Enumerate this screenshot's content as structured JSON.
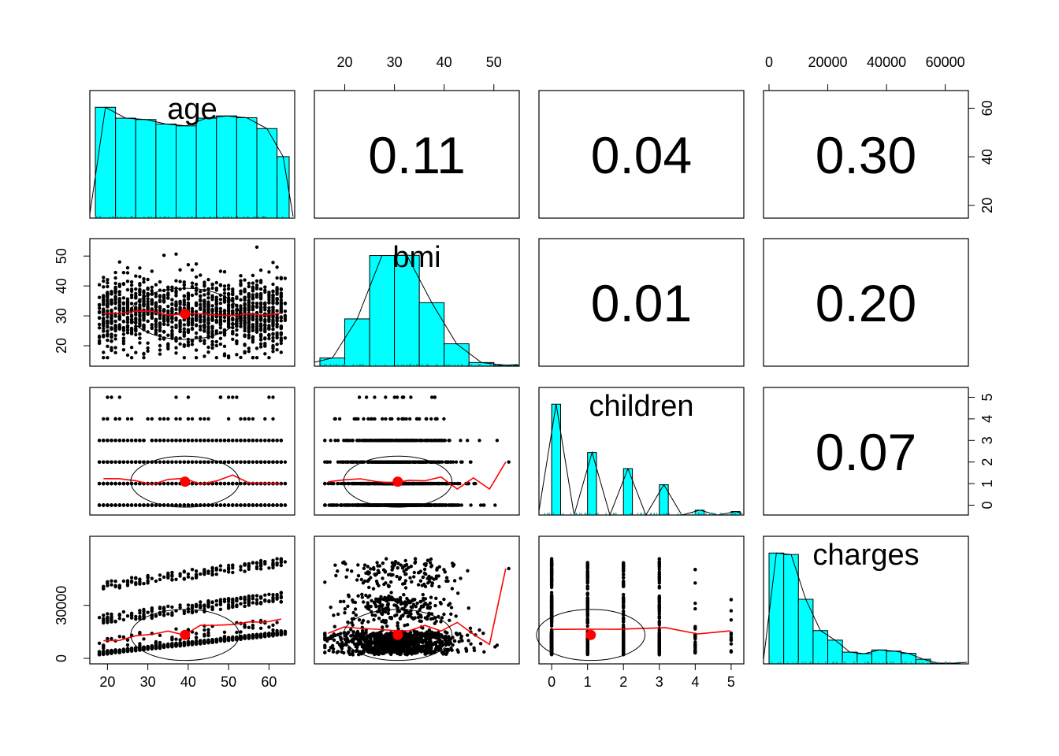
{
  "chart_data": {
    "type": "scatter",
    "variables": [
      "age",
      "bmi",
      "children",
      "charges"
    ],
    "correlations": [
      {
        "row": 0,
        "col": 1,
        "text": "0.11",
        "value": 0.11
      },
      {
        "row": 0,
        "col": 2,
        "text": "0.04",
        "value": 0.04
      },
      {
        "row": 0,
        "col": 3,
        "text": "0.30",
        "value": 0.3
      },
      {
        "row": 1,
        "col": 2,
        "text": "0.01",
        "value": 0.01
      },
      {
        "row": 1,
        "col": 3,
        "text": "0.20",
        "value": 0.2
      },
      {
        "row": 2,
        "col": 3,
        "text": "0.07",
        "value": 0.07
      }
    ],
    "ranges": {
      "age": [
        17,
        65
      ],
      "bmi": [
        15,
        54
      ],
      "children": [
        -0.2,
        5.2
      ],
      "charges": [
        0,
        66000
      ]
    },
    "axis_ticks": {
      "bottom": {
        "age": [
          "20",
          "30",
          "40",
          "50",
          "60"
        ],
        "children": [
          "0",
          "1",
          "2",
          "3",
          "4",
          "5"
        ]
      },
      "top": {
        "bmi": [
          "20",
          "30",
          "40",
          "50"
        ],
        "charges": [
          "0",
          "20000",
          "40000",
          "60000"
        ]
      },
      "left": {
        "bmi": [
          "20",
          "30",
          "40",
          "50"
        ],
        "charges": [
          "0",
          "30000"
        ]
      },
      "right": {
        "age": [
          "20",
          "40",
          "60"
        ],
        "children": [
          "0",
          "1",
          "2",
          "3",
          "4",
          "5"
        ]
      }
    },
    "histograms": {
      "age": {
        "breaks": [
          17,
          22,
          27,
          32,
          37,
          42,
          47,
          52,
          57,
          62,
          65
        ],
        "density": [
          0.0245,
          0.0221,
          0.0218,
          0.0208,
          0.0204,
          0.0221,
          0.0226,
          0.0222,
          0.0198,
          0.0136
        ]
      },
      "bmi": {
        "breaks": [
          15,
          20,
          25,
          30,
          35,
          40,
          45,
          50,
          55
        ],
        "density": [
          0.0036,
          0.0207,
          0.0484,
          0.0485,
          0.0278,
          0.0098,
          0.0016,
          0.0004
        ]
      },
      "children": {
        "breaks": [
          0,
          0.25,
          1,
          1.25,
          2,
          2.25,
          3,
          3.25,
          4,
          4.25,
          5,
          5.25
        ],
        "density": [
          1.72,
          0,
          0.97,
          0,
          0.72,
          0,
          0.47,
          0,
          0.075,
          0,
          0.054
        ]
      },
      "charges": {
        "breaks": [
          0,
          5000,
          10000,
          15000,
          20000,
          25000,
          30000,
          35000,
          40000,
          45000,
          50000,
          55000,
          60000,
          65000
        ],
        "density": [
          4.53e-05,
          4.47e-05,
          2.64e-05,
          1.36e-05,
          9.7e-06,
          4.8e-06,
          4.2e-06,
          5.7e-06,
          5.2e-06,
          4.3e-06,
          1.9e-06,
          3e-07,
          3e-07
        ]
      }
    },
    "means": {
      "age": 39.2,
      "bmi": 30.66,
      "children": 1.09,
      "charges": 13270
    },
    "colors": {
      "histogram_fill": "#00ffff",
      "fit_line": "#ff0000",
      "mean_point": "#ff0000",
      "points": "#000000"
    },
    "grid": false
  }
}
